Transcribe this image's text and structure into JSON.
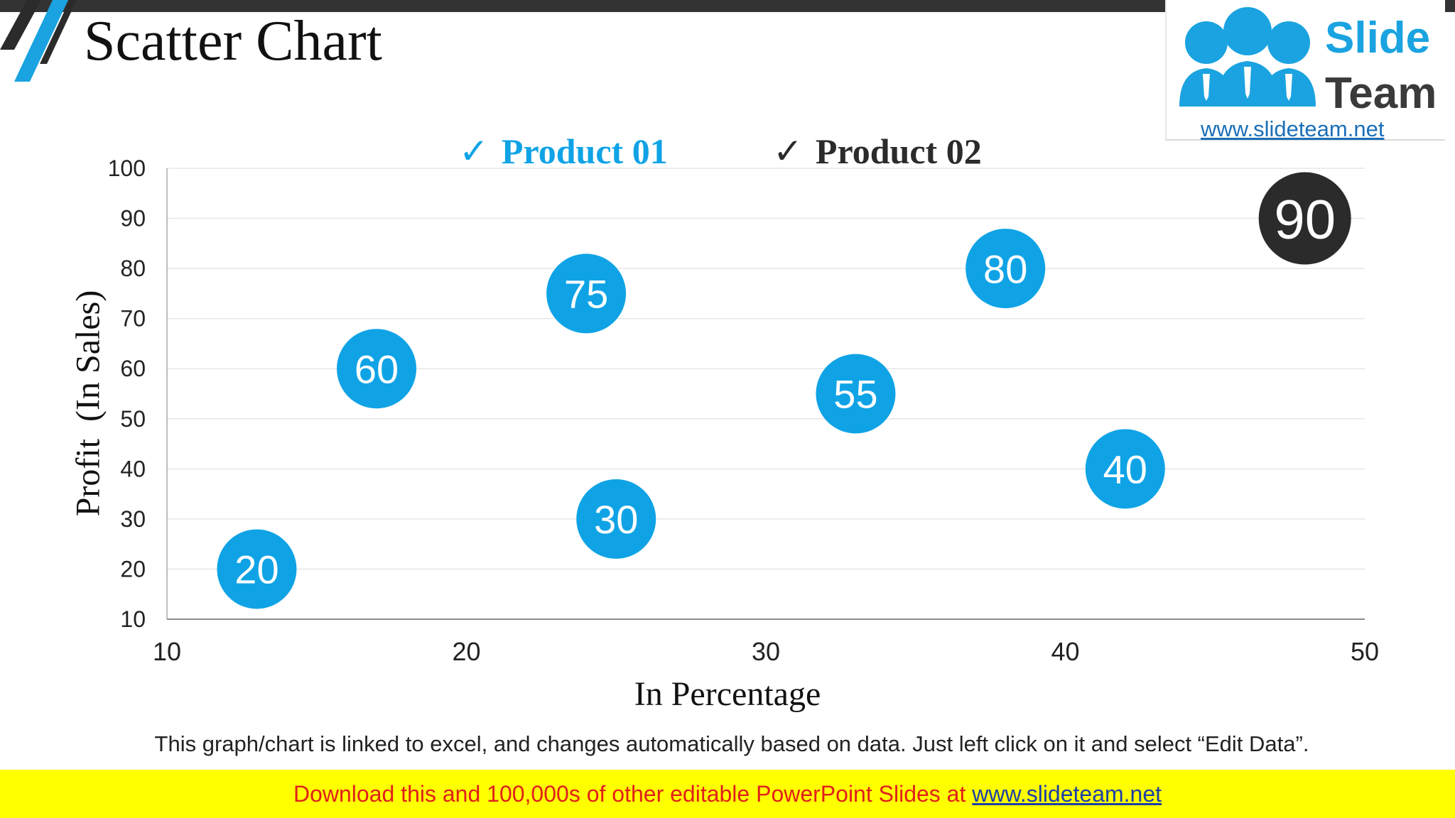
{
  "header": {
    "title": "Scatter Chart"
  },
  "logo": {
    "line1": "Slide",
    "line2": "Team",
    "url": "www.slideteam.net",
    "color_primary": "#1aa3e0",
    "color_secondary": "#3a3a3a"
  },
  "chart_data": {
    "type": "scatter",
    "title": "",
    "xlabel": "In Percentage",
    "ylabel": "Profit  (In Sales)",
    "xlim": [
      10,
      50
    ],
    "ylim": [
      10,
      100
    ],
    "x_ticks": [
      10,
      20,
      30,
      40,
      50
    ],
    "y_ticks": [
      10,
      20,
      30,
      40,
      50,
      60,
      70,
      80,
      90,
      100
    ],
    "grid": true,
    "legend_position": "top-center",
    "series": [
      {
        "name": "Product 01",
        "color": "#0fa3e6",
        "points": [
          {
            "x": 13,
            "y": 20,
            "label": "20"
          },
          {
            "x": 17,
            "y": 60,
            "label": "60"
          },
          {
            "x": 24,
            "y": 75,
            "label": "75"
          },
          {
            "x": 25,
            "y": 30,
            "label": "30"
          },
          {
            "x": 33,
            "y": 55,
            "label": "55"
          },
          {
            "x": 38,
            "y": 80,
            "label": "80"
          },
          {
            "x": 42,
            "y": 40,
            "label": "40"
          }
        ]
      },
      {
        "name": "Product 02",
        "color": "#2b2b2b",
        "points": [
          {
            "x": 48,
            "y": 90,
            "label": "90"
          }
        ]
      }
    ]
  },
  "legend": {
    "check_symbol": "✓",
    "items": [
      {
        "label": "Product 01",
        "color": "#0fa3e6"
      },
      {
        "label": "Product 02",
        "color": "#2b2b2b"
      }
    ]
  },
  "footnote": "This graph/chart is linked to excel, and changes automatically based on data. Just left click on it and select “Edit Data”.",
  "banner": {
    "text": "Download this and 100,000s of other editable PowerPoint Slides at ",
    "link": "www.slideteam.net",
    "background": "#ffff00",
    "text_color": "#e0201b"
  }
}
